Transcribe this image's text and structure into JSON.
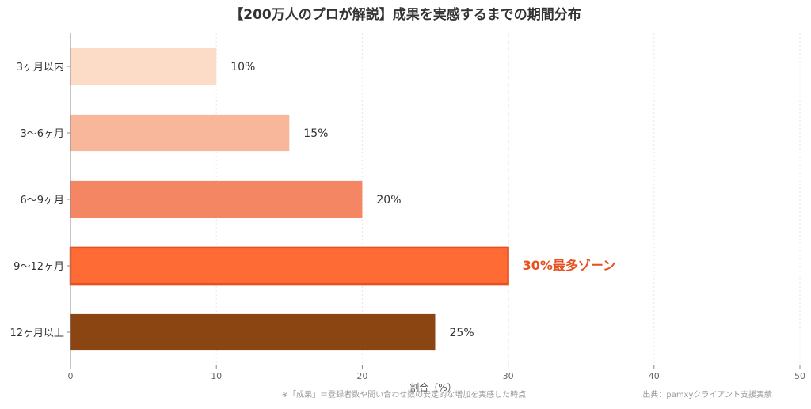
{
  "chart_data": {
    "type": "bar",
    "orientation": "horizontal",
    "title": "【200万人のプロが解説】成果を実感するまでの期間分布",
    "xlabel": "割合（%）",
    "ylabel": "",
    "xlim": [
      0,
      50
    ],
    "x_ticks": [
      "0",
      "10",
      "20",
      "30",
      "40",
      "50"
    ],
    "grid": "vertical dotted",
    "categories": [
      "3ヶ月以内",
      "3〜6ヶ月",
      "6〜9ヶ月",
      "9〜12ヶ月",
      "12ヶ月以上"
    ],
    "values": [
      10,
      15,
      20,
      30,
      25
    ],
    "value_labels": [
      "10%",
      "15%",
      "20%",
      "30%最多ゾーン",
      "25%"
    ],
    "bar_colors": [
      "#fcdcc6",
      "#f8b69b",
      "#f48663",
      "#ff6b35",
      "#8b4513"
    ],
    "highlight": {
      "index": 3,
      "border_color": "#e8501f",
      "label_color": "#e8501f",
      "reference_line_value": 30,
      "reference_line_color": "#f4a582"
    },
    "footnote": "※「成果」＝登録者数や問い合わせ数の安定的な増加を実感した時点",
    "source": "出典：pamxyクライアント支援実績"
  }
}
